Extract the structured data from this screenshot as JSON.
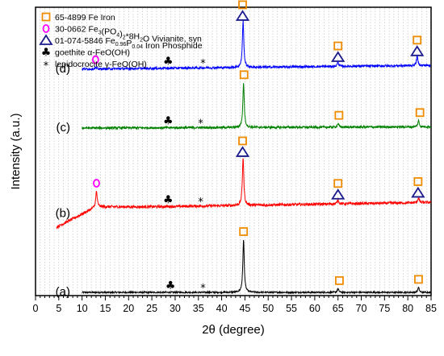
{
  "chart_data": {
    "type": "line",
    "title": "",
    "xlabel": "2θ (degree)",
    "ylabel": "Intensity (a.u.)",
    "xlim": [
      0,
      85
    ],
    "x_ticks": [
      0,
      5,
      10,
      15,
      20,
      25,
      30,
      35,
      40,
      45,
      50,
      55,
      60,
      65,
      70,
      75,
      80,
      85
    ],
    "grid": "vertical dotted, every 1 degree",
    "legend_position": "top-left",
    "legend": [
      {
        "marker": "square",
        "color": "#f08c00",
        "code": "65-4899",
        "label_parts": [
          {
            "t": "65-4899 Fe Iron"
          }
        ]
      },
      {
        "marker": "circle",
        "color": "#ff00ff",
        "code": "30-0662",
        "label_parts": [
          {
            "t": "30-0662 Fe"
          },
          {
            "t": "3",
            "sub": true
          },
          {
            "t": "(PO"
          },
          {
            "t": "4",
            "sub": true
          },
          {
            "t": ")"
          },
          {
            "t": "2",
            "sub": true
          },
          {
            "t": "*8H"
          },
          {
            "t": "2",
            "sub": true
          },
          {
            "t": "O Vivianite, syn"
          }
        ]
      },
      {
        "marker": "triangle",
        "color": "#1a1a8c",
        "code": "01-074-5846",
        "label_parts": [
          {
            "t": "01-074-5846 Fe"
          },
          {
            "t": "0.96",
            "sub": true
          },
          {
            "t": "P"
          },
          {
            "t": "0.04",
            "sub": true
          },
          {
            "t": " Iron Phosphide"
          }
        ]
      },
      {
        "marker": "club",
        "color": "#000000",
        "label_parts": [
          {
            "t": "goethite α-FeO(OH)"
          }
        ]
      },
      {
        "marker": "asterisk",
        "color": "#000000",
        "label_parts": [
          {
            "t": "lepidocrocite γ-FeO(OH)"
          }
        ]
      }
    ],
    "series": [
      {
        "name": "(a)",
        "color": "#000000",
        "baseline": 0.0,
        "background": [
          [
            10,
            0.0
          ],
          [
            85,
            0.0
          ]
        ],
        "peaks": [
          [
            44.7,
            0.85
          ],
          [
            65.0,
            0.06
          ],
          [
            82.3,
            0.08
          ]
        ],
        "noise": 0.012,
        "markers": [
          {
            "type": "club",
            "x": 29
          },
          {
            "type": "asterisk",
            "x": 36
          },
          {
            "type": "square",
            "x": 44.7
          },
          {
            "type": "square",
            "x": 65.3
          },
          {
            "type": "square",
            "x": 82.3
          }
        ]
      },
      {
        "name": "(b)",
        "color": "#ff0000",
        "baseline": 1.4,
        "background": [
          [
            4.5,
            1.05
          ],
          [
            13,
            1.38
          ],
          [
            25,
            1.38
          ],
          [
            85,
            1.45
          ]
        ],
        "peaks": [
          [
            13.1,
            0.25
          ],
          [
            44.6,
            0.78
          ],
          [
            65.0,
            0.07
          ],
          [
            82.3,
            0.08
          ]
        ],
        "noise": 0.022,
        "markers": [
          {
            "type": "circle",
            "x": 13.1
          },
          {
            "type": "club",
            "x": 28.5
          },
          {
            "type": "asterisk",
            "x": 35.5
          },
          {
            "type": "square",
            "x": 44.5
          },
          {
            "type": "triangle",
            "x": 44.5
          },
          {
            "type": "square",
            "x": 65
          },
          {
            "type": "triangle",
            "x": 65
          },
          {
            "type": "square",
            "x": 82.2
          },
          {
            "type": "triangle",
            "x": 82.2
          }
        ]
      },
      {
        "name": "(c)",
        "color": "#008000",
        "baseline": 2.65,
        "background": [
          [
            10,
            2.65
          ],
          [
            85,
            2.67
          ]
        ],
        "peaks": [
          [
            44.7,
            0.72
          ],
          [
            65.0,
            0.06
          ],
          [
            82.3,
            0.1
          ]
        ],
        "noise": 0.018,
        "markers": [
          {
            "type": "club",
            "x": 28.5
          },
          {
            "type": "asterisk",
            "x": 35.5
          },
          {
            "type": "square",
            "x": 44.8
          },
          {
            "type": "square",
            "x": 65.2
          },
          {
            "type": "square",
            "x": 82.6
          }
        ]
      },
      {
        "name": "(d)",
        "color": "#0000ff",
        "baseline": 3.6,
        "background": [
          [
            10,
            3.6
          ],
          [
            85,
            3.66
          ]
        ],
        "peaks": [
          [
            12.9,
            0.02
          ],
          [
            44.6,
            0.75
          ],
          [
            65.0,
            0.07
          ],
          [
            82.0,
            0.15
          ]
        ],
        "noise": 0.018,
        "markers": [
          {
            "type": "circle",
            "x": 12.9
          },
          {
            "type": "club",
            "x": 28.5
          },
          {
            "type": "asterisk",
            "x": 36
          },
          {
            "type": "square",
            "x": 44.5
          },
          {
            "type": "triangle",
            "x": 44.5
          },
          {
            "type": "square",
            "x": 65
          },
          {
            "type": "triangle",
            "x": 65
          },
          {
            "type": "square",
            "x": 82
          },
          {
            "type": "triangle",
            "x": 82
          }
        ]
      }
    ]
  }
}
